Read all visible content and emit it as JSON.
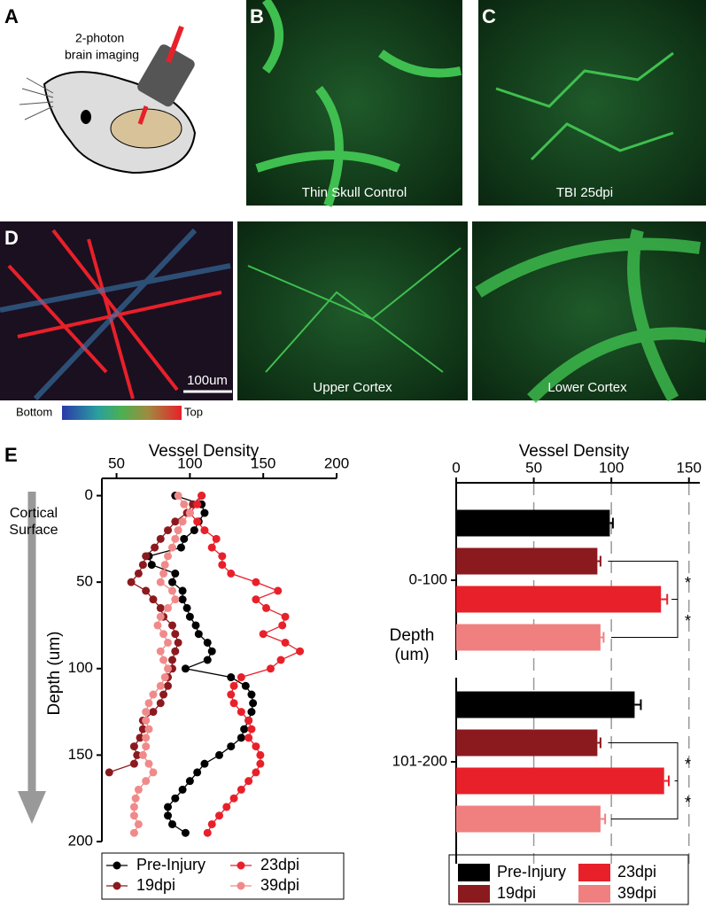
{
  "panels": {
    "a": {
      "label": "A",
      "caption_lines": [
        "2-photon",
        "brain imaging"
      ]
    },
    "b": {
      "label": "B",
      "caption": "Thin Skull Control"
    },
    "c": {
      "label": "C",
      "caption": "TBI 25dpi"
    },
    "d": {
      "label": "D",
      "scale_bar": "100um",
      "colorbar_labels": [
        "Bottom",
        "Top"
      ],
      "captions": [
        "Upper Cortex",
        "Lower Cortex"
      ]
    },
    "e": {
      "label": "E"
    }
  },
  "chart_data": [
    {
      "type": "line",
      "xlabel": "Vessel Density",
      "ylabel": "Depth (um)",
      "annotation_lines": [
        "Cortical",
        "Surface"
      ],
      "xlim": [
        40,
        200
      ],
      "xticks": [
        50,
        100,
        150,
        200
      ],
      "ylim": [
        -10,
        200
      ],
      "yticks": [
        0,
        50,
        100,
        150,
        200
      ],
      "depth": [
        0,
        5,
        10,
        15,
        20,
        25,
        30,
        35,
        40,
        45,
        50,
        55,
        60,
        65,
        70,
        75,
        80,
        85,
        90,
        95,
        100,
        105,
        110,
        115,
        120,
        125,
        130,
        135,
        140,
        145,
        150,
        155,
        160,
        165,
        170,
        175,
        180,
        185,
        190,
        195
      ],
      "series": [
        {
          "name": "Pre-Injury",
          "color": "#000000",
          "values": [
            90,
            108,
            110,
            106,
            103,
            96,
            94,
            72,
            74,
            90,
            88,
            95,
            95,
            98,
            100,
            104,
            106,
            112,
            115,
            112,
            97,
            128,
            138,
            142,
            143,
            142,
            140,
            137,
            135,
            128,
            120,
            110,
            105,
            100,
            95,
            90,
            85,
            85,
            88,
            97
          ]
        },
        {
          "name": "19dpi",
          "color": "#8b1a1f",
          "values": [
            108,
            102,
            98,
            90,
            85,
            80,
            76,
            70,
            68,
            65,
            60,
            70,
            75,
            80,
            82,
            88,
            90,
            92,
            90,
            88,
            88,
            85,
            85,
            82,
            80,
            75,
            68,
            68,
            66,
            62,
            64,
            62,
            45,
            null,
            null,
            null,
            null,
            null,
            null,
            null
          ]
        },
        {
          "name": "23dpi",
          "color": "#e8202a",
          "values": [
            108,
            105,
            100,
            105,
            110,
            118,
            115,
            122,
            122,
            128,
            145,
            160,
            145,
            152,
            165,
            163,
            150,
            165,
            175,
            162,
            155,
            135,
            130,
            128,
            130,
            135,
            140,
            142,
            140,
            145,
            148,
            148,
            145,
            140,
            135,
            130,
            125,
            120,
            115,
            112
          ]
        },
        {
          "name": "39dpi",
          "color": "#f08a8a",
          "values": [
            92,
            96,
            100,
            95,
            92,
            90,
            88,
            85,
            83,
            82,
            80,
            88,
            90,
            85,
            80,
            78,
            82,
            85,
            80,
            82,
            85,
            83,
            80,
            75,
            72,
            70,
            70,
            72,
            70,
            70,
            68,
            72,
            75,
            70,
            65,
            63,
            62,
            62,
            65,
            62
          ]
        }
      ]
    },
    {
      "type": "barh",
      "xlabel": "Vessel Density",
      "ylabel_lines": [
        "Depth",
        "(um)"
      ],
      "xlim": [
        0,
        157
      ],
      "xticks": [
        0,
        50,
        100,
        150
      ],
      "grid": true,
      "categories": [
        "0-100",
        "101-200"
      ],
      "annotations": [
        "*",
        "*",
        "*",
        "*"
      ],
      "series": [
        {
          "name": "Pre-Injury",
          "color": "#000000",
          "values": [
            99,
            115
          ],
          "errors": [
            2,
            4
          ]
        },
        {
          "name": "19dpi",
          "color": "#8b1a1f",
          "values": [
            91,
            91
          ],
          "errors": [
            2,
            2
          ]
        },
        {
          "name": "23dpi",
          "color": "#e8202a",
          "values": [
            132,
            134
          ],
          "errors": [
            4,
            3
          ]
        },
        {
          "name": "39dpi",
          "color": "#f08080",
          "values": [
            93,
            93
          ],
          "errors": [
            2,
            3
          ]
        }
      ]
    }
  ]
}
